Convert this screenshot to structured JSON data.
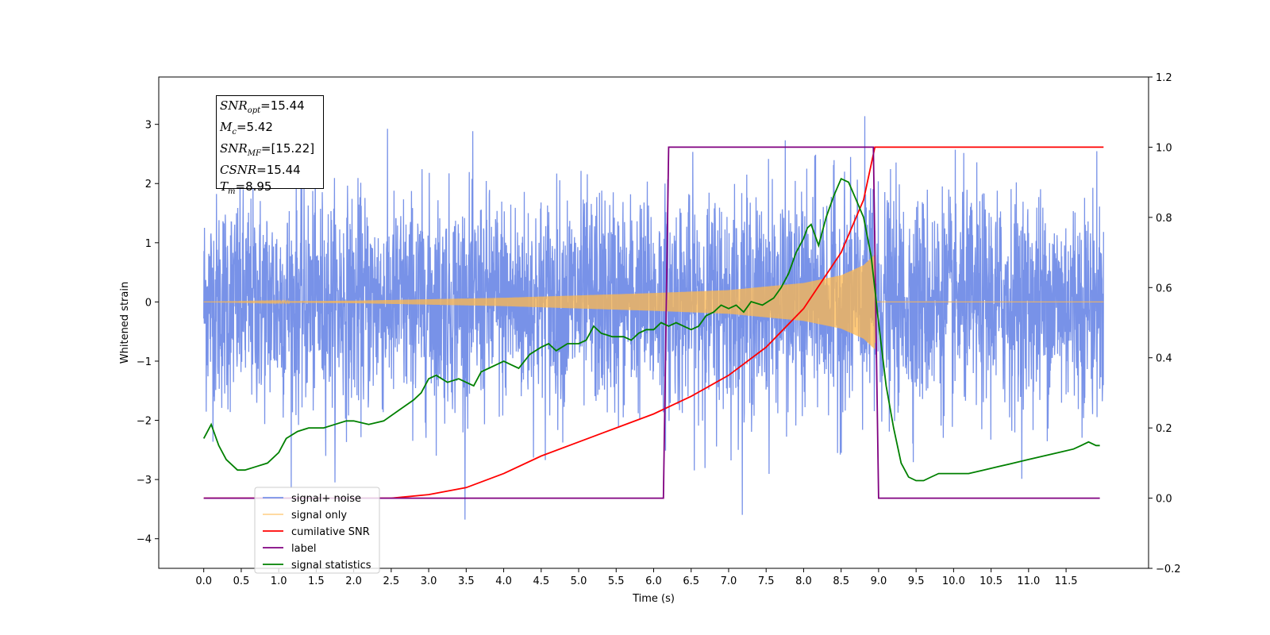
{
  "chart_data": {
    "type": "line",
    "xlabel": "Time (s)",
    "ylabel": "Whitened strain",
    "xlim": [
      -0.6,
      12.6
    ],
    "ylim": [
      -4.5,
      3.8
    ],
    "y2lim": [
      -0.2,
      1.2
    ],
    "x_ticks": [
      "0.0",
      "0.5",
      "1.0",
      "1.5",
      "2.0",
      "2.5",
      "3.0",
      "3.5",
      "4.0",
      "4.5",
      "5.0",
      "5.5",
      "6.0",
      "6.5",
      "7.0",
      "7.5",
      "8.0",
      "8.5",
      "9.0",
      "9.5",
      "10.0",
      "10.5",
      "11.0",
      "11.5"
    ],
    "y_ticks": [
      "3",
      "2",
      "1",
      "0",
      "−1",
      "−2",
      "−3",
      "−4"
    ],
    "y2_ticks": [
      "1.2",
      "1.0",
      "0.8",
      "0.6",
      "0.4",
      "0.2",
      "0.0",
      "−0.2"
    ],
    "legend_position": "lower-left",
    "grid": false,
    "info_box": [
      {
        "sym": "SNR",
        "sub": "opt",
        "value": "=15.44"
      },
      {
        "sym": "M",
        "sub": "c",
        "value": "=5.42"
      },
      {
        "sym": "SNR",
        "sub": "MF",
        "value": "=[15.22]"
      },
      {
        "sym": "CSNR",
        "sub": "",
        "value": "=15.44"
      },
      {
        "sym": "T",
        "sub": "m",
        "value": "=8.95"
      }
    ],
    "series": [
      {
        "name": "signal+ noise",
        "color": "#7892e8",
        "axis": "left",
        "description_stats": {
          "x_range": [
            0,
            12.0
          ],
          "amplitude_std": 0.9
        }
      },
      {
        "name": "signal only",
        "color": "#ffb84d",
        "axis": "left",
        "envelope": {
          "x": [
            0.0,
            2.0,
            4.0,
            6.0,
            7.0,
            8.0,
            8.5,
            8.8,
            8.95,
            8.97,
            12.0
          ],
          "amp": [
            0.0,
            0.02,
            0.07,
            0.15,
            0.2,
            0.32,
            0.45,
            0.62,
            0.8,
            0.0,
            0.0
          ]
        }
      },
      {
        "name": "cumilative SNR",
        "color": "#ff0000",
        "axis": "right",
        "x": [
          0.0,
          2.5,
          3.0,
          3.5,
          4.0,
          4.5,
          5.0,
          5.5,
          6.0,
          6.5,
          7.0,
          7.5,
          8.0,
          8.5,
          8.8,
          8.95,
          9.0,
          12.0
        ],
        "values": [
          0.0,
          0.0,
          0.01,
          0.03,
          0.07,
          0.12,
          0.16,
          0.2,
          0.24,
          0.29,
          0.35,
          0.43,
          0.54,
          0.7,
          0.85,
          1.0,
          1.0,
          1.0
        ]
      },
      {
        "name": "label",
        "color": "#800080",
        "axis": "right",
        "x": [
          0.0,
          6.13,
          6.2,
          8.93,
          9.0,
          11.95
        ],
        "values": [
          0.0,
          0.0,
          1.0,
          1.0,
          0.0,
          0.0
        ]
      },
      {
        "name": "signal statistics",
        "color": "#008000",
        "axis": "right",
        "x": [
          0.0,
          0.05,
          0.1,
          0.2,
          0.3,
          0.45,
          0.55,
          0.7,
          0.85,
          1.0,
          1.1,
          1.25,
          1.4,
          1.6,
          1.75,
          1.9,
          2.0,
          2.2,
          2.4,
          2.6,
          2.8,
          2.9,
          3.0,
          3.1,
          3.25,
          3.4,
          3.5,
          3.6,
          3.7,
          3.8,
          3.9,
          4.0,
          4.1,
          4.2,
          4.35,
          4.5,
          4.6,
          4.7,
          4.85,
          5.0,
          5.1,
          5.2,
          5.3,
          5.45,
          5.6,
          5.7,
          5.8,
          5.9,
          6.0,
          6.1,
          6.2,
          6.3,
          6.4,
          6.5,
          6.6,
          6.7,
          6.8,
          6.9,
          7.0,
          7.1,
          7.2,
          7.3,
          7.45,
          7.6,
          7.7,
          7.8,
          7.9,
          8.0,
          8.05,
          8.1,
          8.2,
          8.3,
          8.4,
          8.5,
          8.6,
          8.7,
          8.8,
          8.9,
          9.0,
          9.1,
          9.2,
          9.3,
          9.4,
          9.5,
          9.6,
          9.7,
          9.8,
          9.9,
          10.0,
          10.2,
          10.4,
          10.6,
          10.8,
          11.0,
          11.2,
          11.4,
          11.6,
          11.7,
          11.8,
          11.9,
          11.95
        ],
        "values": [
          0.17,
          0.19,
          0.21,
          0.15,
          0.11,
          0.08,
          0.08,
          0.09,
          0.1,
          0.13,
          0.17,
          0.19,
          0.2,
          0.2,
          0.21,
          0.22,
          0.22,
          0.21,
          0.22,
          0.25,
          0.28,
          0.3,
          0.34,
          0.35,
          0.33,
          0.34,
          0.33,
          0.32,
          0.36,
          0.37,
          0.38,
          0.39,
          0.38,
          0.37,
          0.41,
          0.43,
          0.44,
          0.42,
          0.44,
          0.44,
          0.45,
          0.49,
          0.47,
          0.46,
          0.46,
          0.45,
          0.47,
          0.48,
          0.48,
          0.5,
          0.49,
          0.5,
          0.49,
          0.48,
          0.49,
          0.52,
          0.53,
          0.55,
          0.54,
          0.55,
          0.53,
          0.56,
          0.55,
          0.57,
          0.6,
          0.64,
          0.7,
          0.74,
          0.77,
          0.78,
          0.72,
          0.8,
          0.86,
          0.91,
          0.9,
          0.85,
          0.8,
          0.69,
          0.5,
          0.32,
          0.2,
          0.1,
          0.06,
          0.05,
          0.05,
          0.06,
          0.07,
          0.07,
          0.07,
          0.07,
          0.08,
          0.09,
          0.1,
          0.11,
          0.12,
          0.13,
          0.14,
          0.15,
          0.16,
          0.15,
          0.15
        ]
      }
    ]
  }
}
